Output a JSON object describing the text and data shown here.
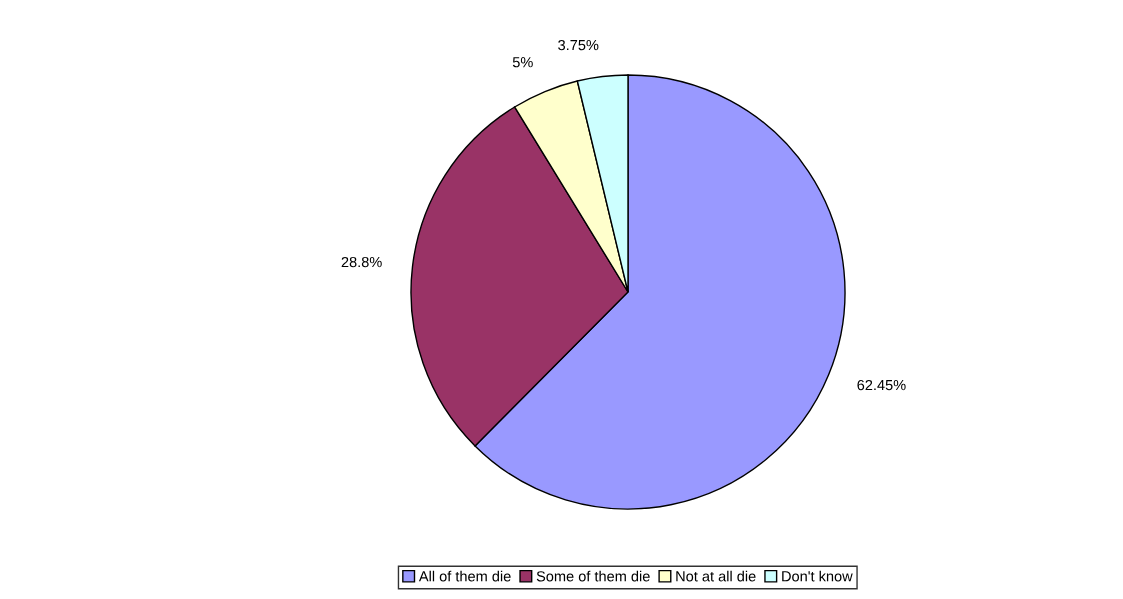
{
  "chart_data": {
    "type": "pie",
    "categories": [
      "All of them die",
      "Some of them die",
      "Not at all die",
      "Don't know"
    ],
    "values": [
      62.45,
      28.8,
      5,
      3.75
    ],
    "colors": [
      "#9999ff",
      "#993366",
      "#ffffcc",
      "#ccffff"
    ],
    "value_labels": [
      "62.45%",
      "28.8%",
      "5%",
      "3.75%"
    ],
    "legend": "bottom"
  }
}
